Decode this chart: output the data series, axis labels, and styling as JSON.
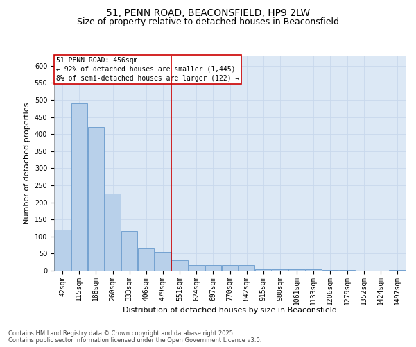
{
  "title1": "51, PENN ROAD, BEACONSFIELD, HP9 2LW",
  "title2": "Size of property relative to detached houses in Beaconsfield",
  "xlabel": "Distribution of detached houses by size in Beaconsfield",
  "ylabel": "Number of detached properties",
  "categories": [
    "42sqm",
    "115sqm",
    "188sqm",
    "260sqm",
    "333sqm",
    "406sqm",
    "479sqm",
    "551sqm",
    "624sqm",
    "697sqm",
    "770sqm",
    "842sqm",
    "915sqm",
    "988sqm",
    "1061sqm",
    "1133sqm",
    "1206sqm",
    "1279sqm",
    "1352sqm",
    "1424sqm",
    "1497sqm"
  ],
  "values": [
    120,
    490,
    420,
    225,
    115,
    65,
    55,
    30,
    17,
    17,
    17,
    17,
    5,
    5,
    5,
    5,
    2,
    2,
    1,
    1,
    2
  ],
  "bar_color": "#b8d0ea",
  "bar_edge_color": "#6699cc",
  "vline_x": 6.5,
  "vline_color": "#cc0000",
  "annotation_text": "51 PENN ROAD: 456sqm\n← 92% of detached houses are smaller (1,445)\n8% of semi-detached houses are larger (122) →",
  "annotation_box_color": "#cc0000",
  "ylim": [
    0,
    630
  ],
  "yticks": [
    0,
    50,
    100,
    150,
    200,
    250,
    300,
    350,
    400,
    450,
    500,
    550,
    600
  ],
  "grid_color": "#c8d8ec",
  "background_color": "#dce8f5",
  "footer": "Contains HM Land Registry data © Crown copyright and database right 2025.\nContains public sector information licensed under the Open Government Licence v3.0.",
  "title_fontsize": 10,
  "subtitle_fontsize": 9,
  "axis_label_fontsize": 8,
  "tick_fontsize": 7,
  "ann_fontsize": 7,
  "footer_fontsize": 6
}
